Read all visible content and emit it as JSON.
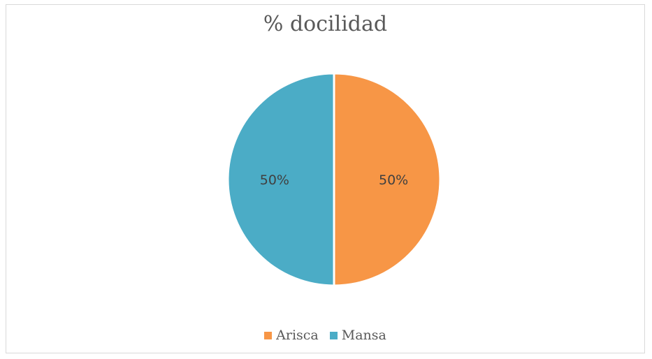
{
  "chart_data": {
    "type": "pie",
    "title": "% docilidad",
    "categories": [
      "Arisca",
      "Mansa"
    ],
    "values": [
      50,
      50
    ],
    "data_labels": [
      "50%",
      "50%"
    ],
    "colors": [
      "#f79646",
      "#4bacc6"
    ],
    "legend": "bottom"
  }
}
